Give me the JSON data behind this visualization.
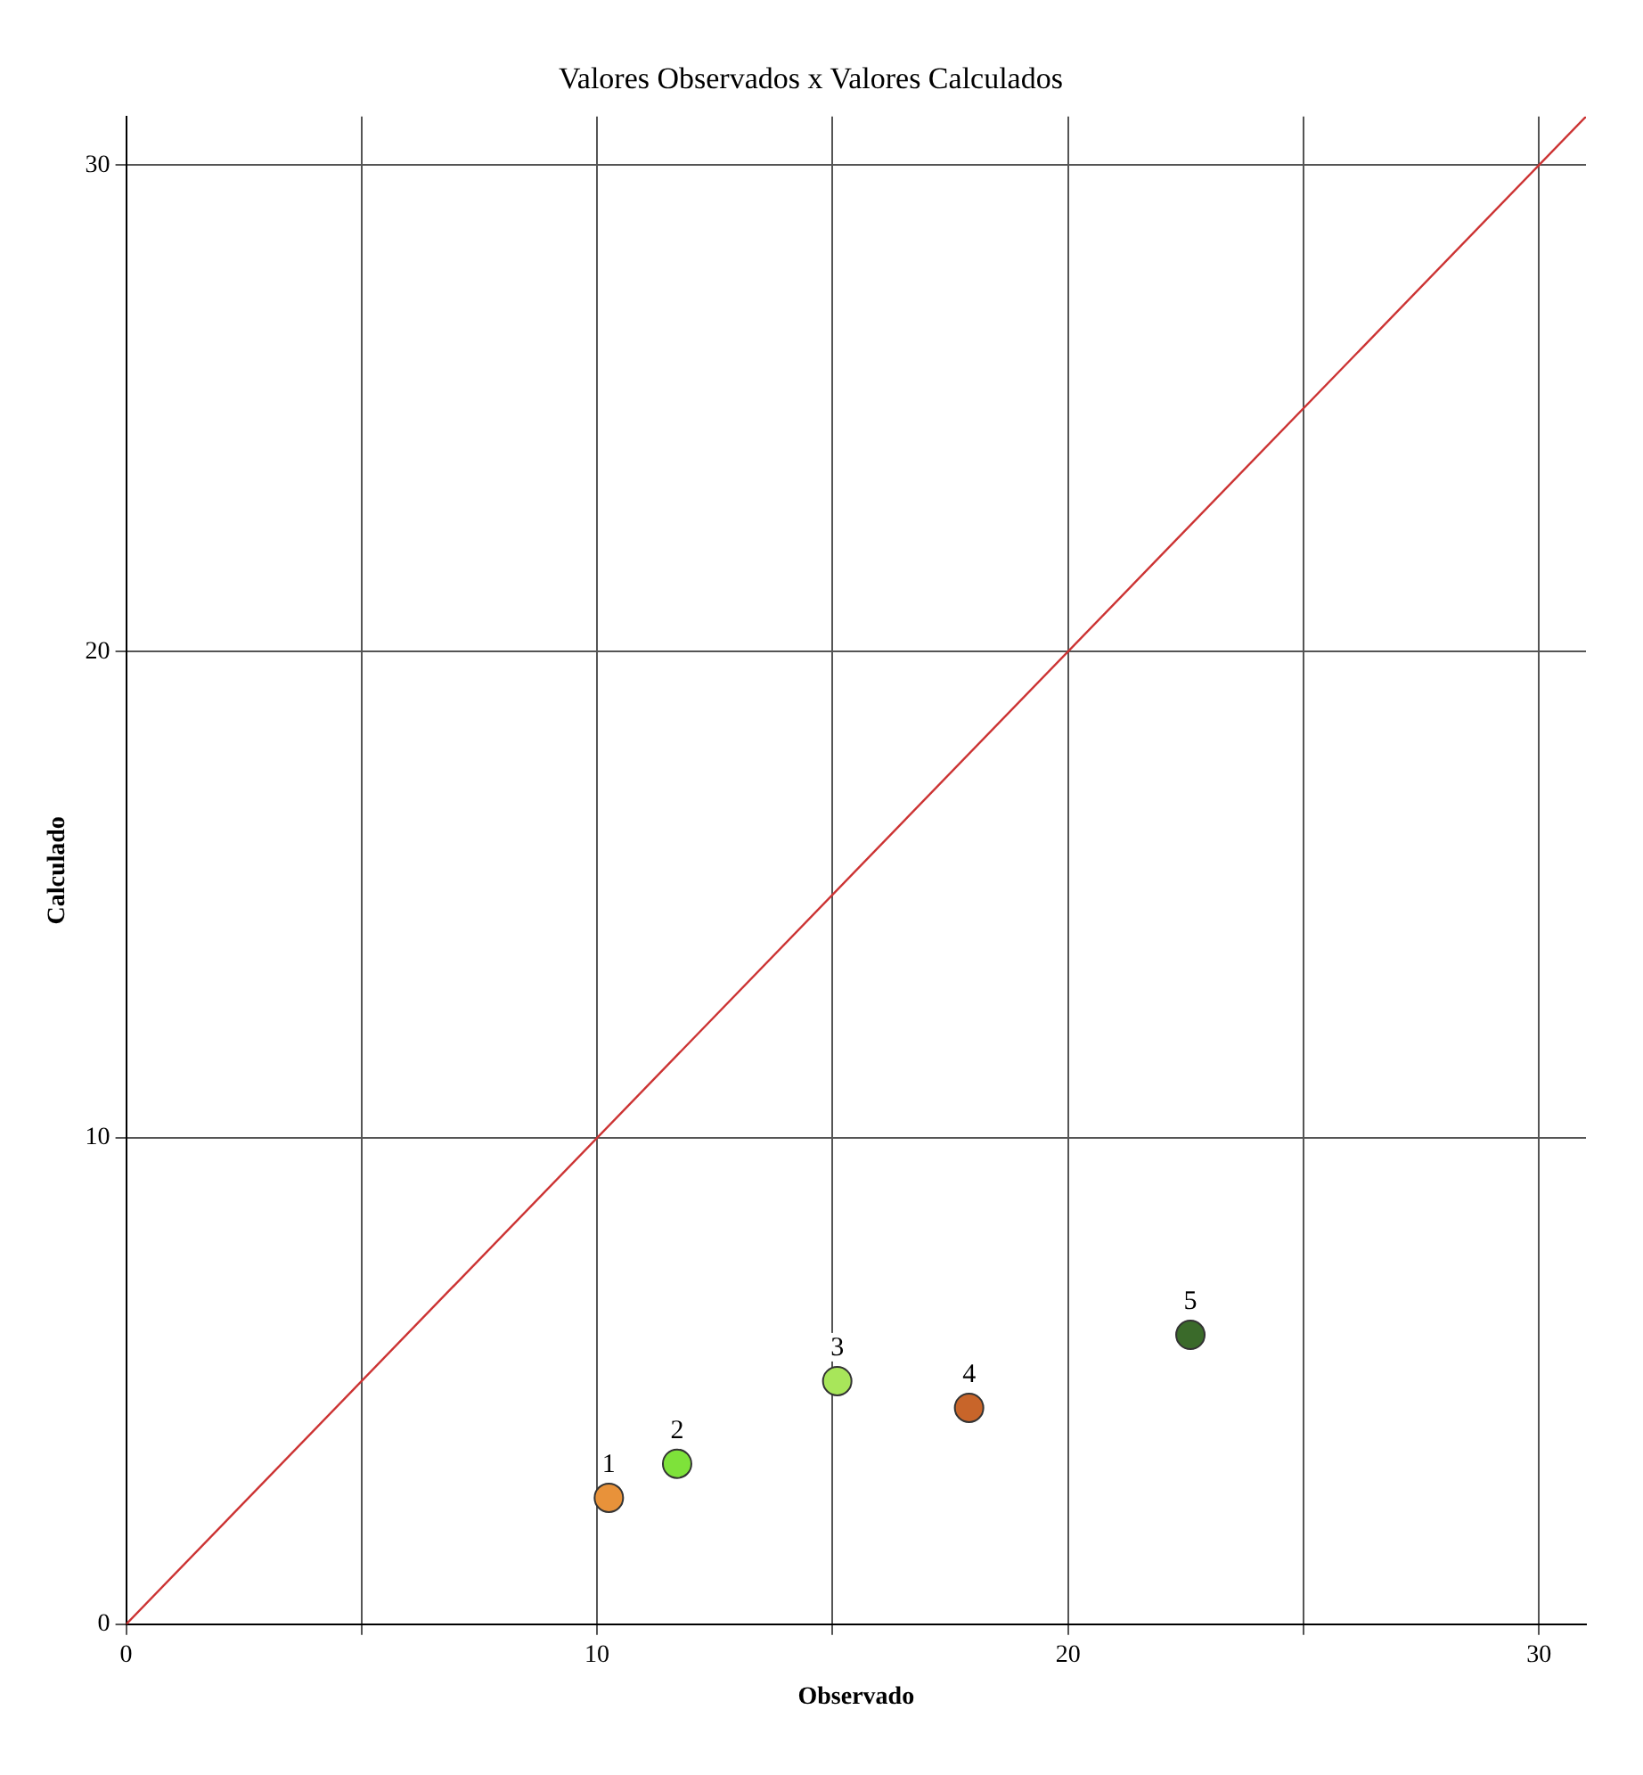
{
  "chart_data": {
    "type": "scatter",
    "title": "Valores Observados x Valores Calculados",
    "xlabel": "Observado",
    "ylabel": "Calculado",
    "xlim": [
      0,
      31
    ],
    "ylim": [
      0,
      31
    ],
    "xticks": [
      0,
      {
        "value": 5,
        "label": null
      },
      10,
      {
        "value": 15,
        "label": null
      },
      20,
      {
        "value": 25,
        "label": null
      },
      30
    ],
    "yticks": [
      0,
      10,
      20,
      30
    ],
    "grid": true,
    "marker": "circle",
    "legend": false,
    "series": [
      {
        "type": "line",
        "color": "#cc3333",
        "x": [
          0,
          31
        ],
        "values": [
          0,
          31
        ],
        "marker": "none",
        "line_style": "solid"
      },
      {
        "x": [
          10.25,
          11.7,
          15.1,
          17.9,
          22.6
        ],
        "values": [
          2.6,
          3.3,
          5.0,
          4.45,
          5.95
        ],
        "colors": [
          "#e8923a",
          "#7ee23a",
          "#a8e65a",
          "#c8652a",
          "#3a6a2a"
        ]
      }
    ],
    "annotations": [
      {
        "text": "1",
        "x": 10.25,
        "y": 2.6
      },
      {
        "text": "2",
        "x": 11.7,
        "y": 3.3
      },
      {
        "text": "3",
        "x": 15.1,
        "y": 5.0
      },
      {
        "text": "4",
        "x": 17.9,
        "y": 4.45
      },
      {
        "text": "5",
        "x": 22.6,
        "y": 5.95
      }
    ]
  }
}
